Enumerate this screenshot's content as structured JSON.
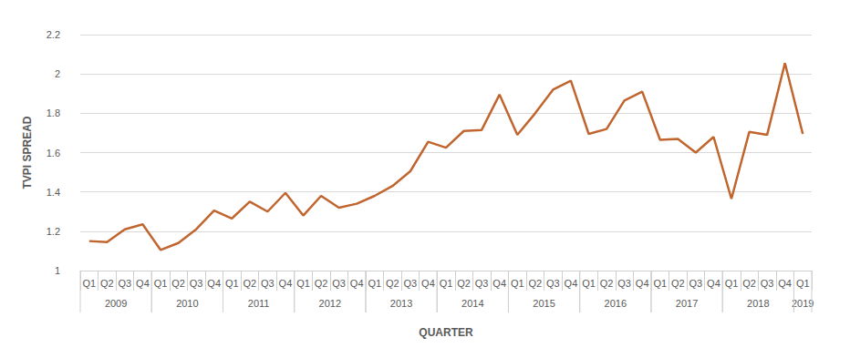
{
  "chart_data": {
    "type": "line",
    "x_label": "QUARTER",
    "y_label": "TVPI SPREAD",
    "categories": [
      "Q1",
      "Q2",
      "Q3",
      "Q4",
      "Q1",
      "Q2",
      "Q3",
      "Q4",
      "Q1",
      "Q2",
      "Q3",
      "Q4",
      "Q1",
      "Q2",
      "Q3",
      "Q4",
      "Q1",
      "Q2",
      "Q3",
      "Q4",
      "Q1",
      "Q2",
      "Q3",
      "Q4",
      "Q1",
      "Q2",
      "Q3",
      "Q4",
      "Q1",
      "Q2",
      "Q3",
      "Q4",
      "Q1",
      "Q2",
      "Q3",
      "Q4",
      "Q1",
      "Q2",
      "Q3",
      "Q4",
      "Q1"
    ],
    "category_groups": [
      "2009",
      "2009",
      "2009",
      "2009",
      "2010",
      "2010",
      "2010",
      "2010",
      "2011",
      "2011",
      "2011",
      "2011",
      "2012",
      "2012",
      "2012",
      "2012",
      "2013",
      "2013",
      "2013",
      "2013",
      "2014",
      "2014",
      "2014",
      "2014",
      "2015",
      "2015",
      "2015",
      "2015",
      "2016",
      "2016",
      "2016",
      "2016",
      "2017",
      "2017",
      "2017",
      "2017",
      "2018",
      "2018",
      "2018",
      "2018",
      "2019"
    ],
    "values": [
      1.15,
      1.145,
      1.21,
      1.235,
      1.105,
      1.14,
      1.21,
      1.305,
      1.265,
      1.35,
      1.3,
      1.395,
      1.28,
      1.38,
      1.32,
      1.34,
      1.38,
      1.43,
      1.505,
      1.655,
      1.625,
      1.71,
      1.715,
      1.895,
      1.69,
      1.8,
      1.92,
      1.965,
      1.695,
      1.72,
      1.865,
      1.91,
      1.665,
      1.67,
      1.6,
      1.68,
      1.365,
      1.705,
      1.69,
      2.055,
      1.695
    ],
    "color": "#c0652e",
    "marker": "none",
    "line_style": "solid",
    "ylim": [
      1,
      2.2
    ],
    "yticks": [
      1,
      1.2,
      1.4,
      1.6,
      1.8,
      2,
      2.2
    ],
    "grid": true
  }
}
